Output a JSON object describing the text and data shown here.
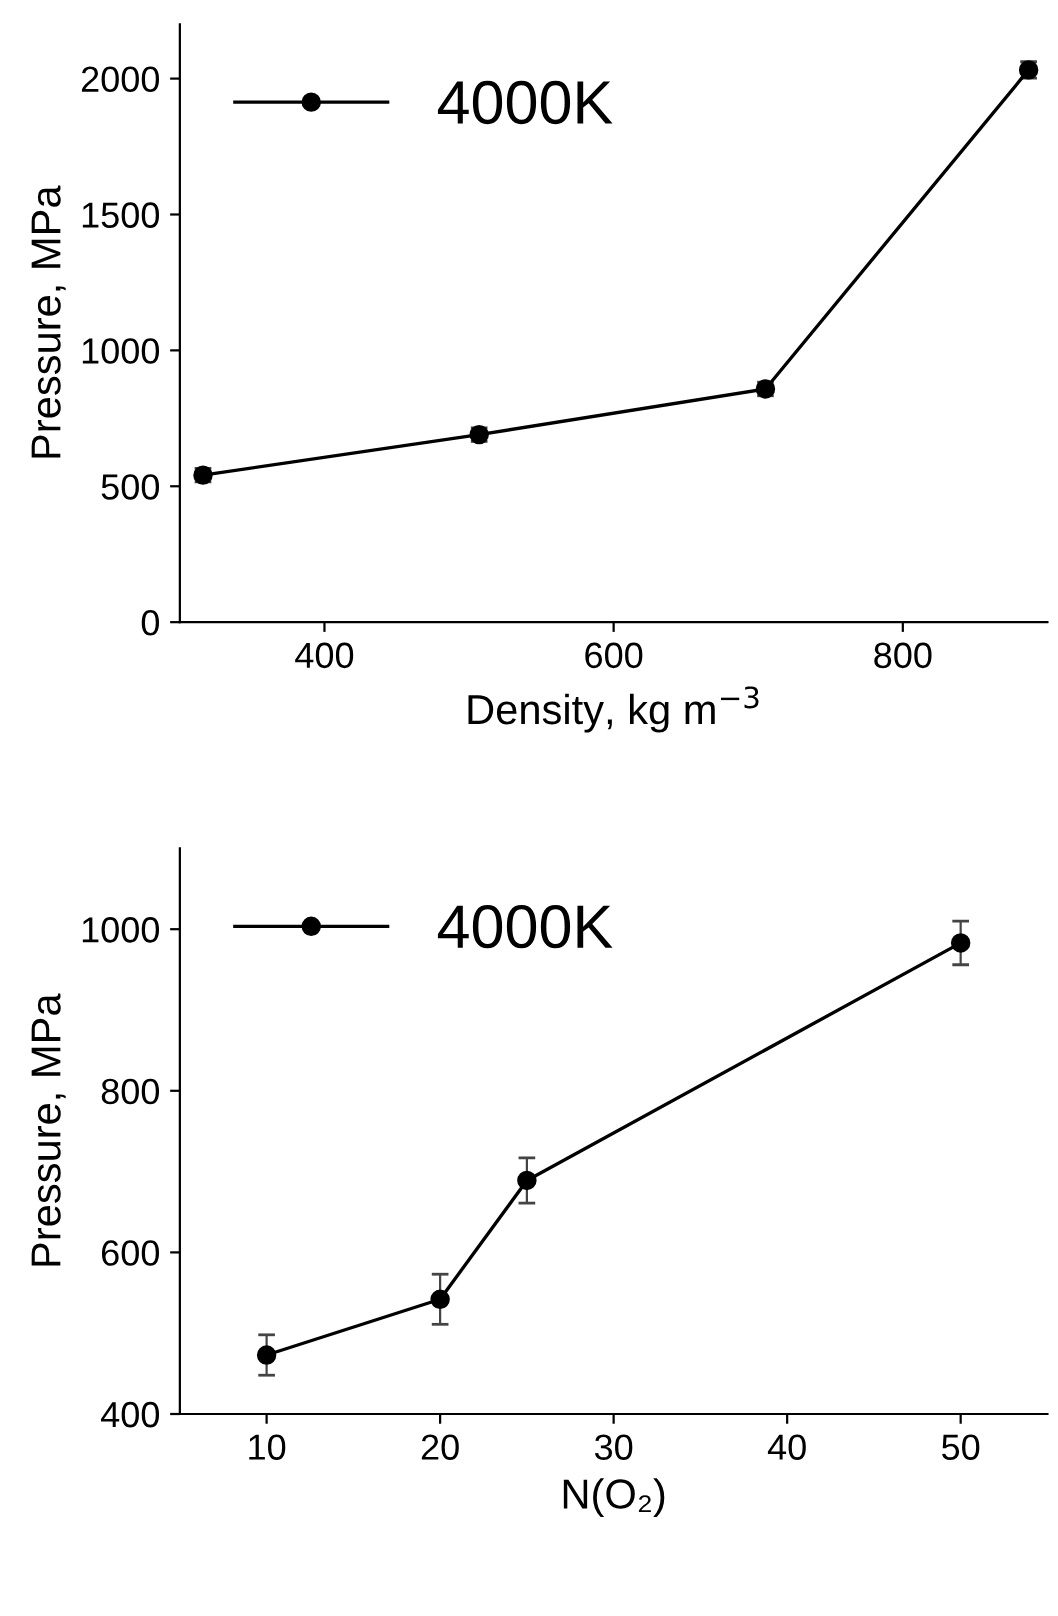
{
  "chart_data": [
    {
      "type": "line",
      "xlabel": "Density, kg m$^{−3}$",
      "ylabel": "Pressure, MPa",
      "xlim": [
        300,
        900
      ],
      "xticks": [
        400,
        600,
        800
      ],
      "ylim": [
        0,
        2200
      ],
      "yticks": [
        0,
        500,
        1000,
        1500,
        2000
      ],
      "marker": "circle",
      "line_style": "solid",
      "legend": "top left",
      "grid": false,
      "series": [
        {
          "name": "4000K",
          "color": "#000000",
          "x": [
            316,
            507,
            705,
            887
          ],
          "values": [
            541,
            690,
            858,
            2032
          ],
          "errors": [
            25,
            25,
            25,
            30
          ]
        }
      ]
    },
    {
      "type": "line",
      "xlabel": "N(O₂)",
      "ylabel": "Pressure, MPa",
      "xlim": [
        5,
        55
      ],
      "xticks": [
        10,
        20,
        30,
        40,
        50
      ],
      "ylim": [
        400,
        1100
      ],
      "yticks": [
        400,
        600,
        800,
        1000
      ],
      "marker": "circle",
      "line_style": "solid",
      "legend": "top left",
      "grid": false,
      "series": [
        {
          "name": "4000K",
          "color": "#000000",
          "x": [
            10,
            20,
            25,
            50
          ],
          "values": [
            473,
            542,
            689,
            983
          ],
          "errors": [
            25,
            31,
            28,
            27
          ]
        }
      ]
    }
  ]
}
